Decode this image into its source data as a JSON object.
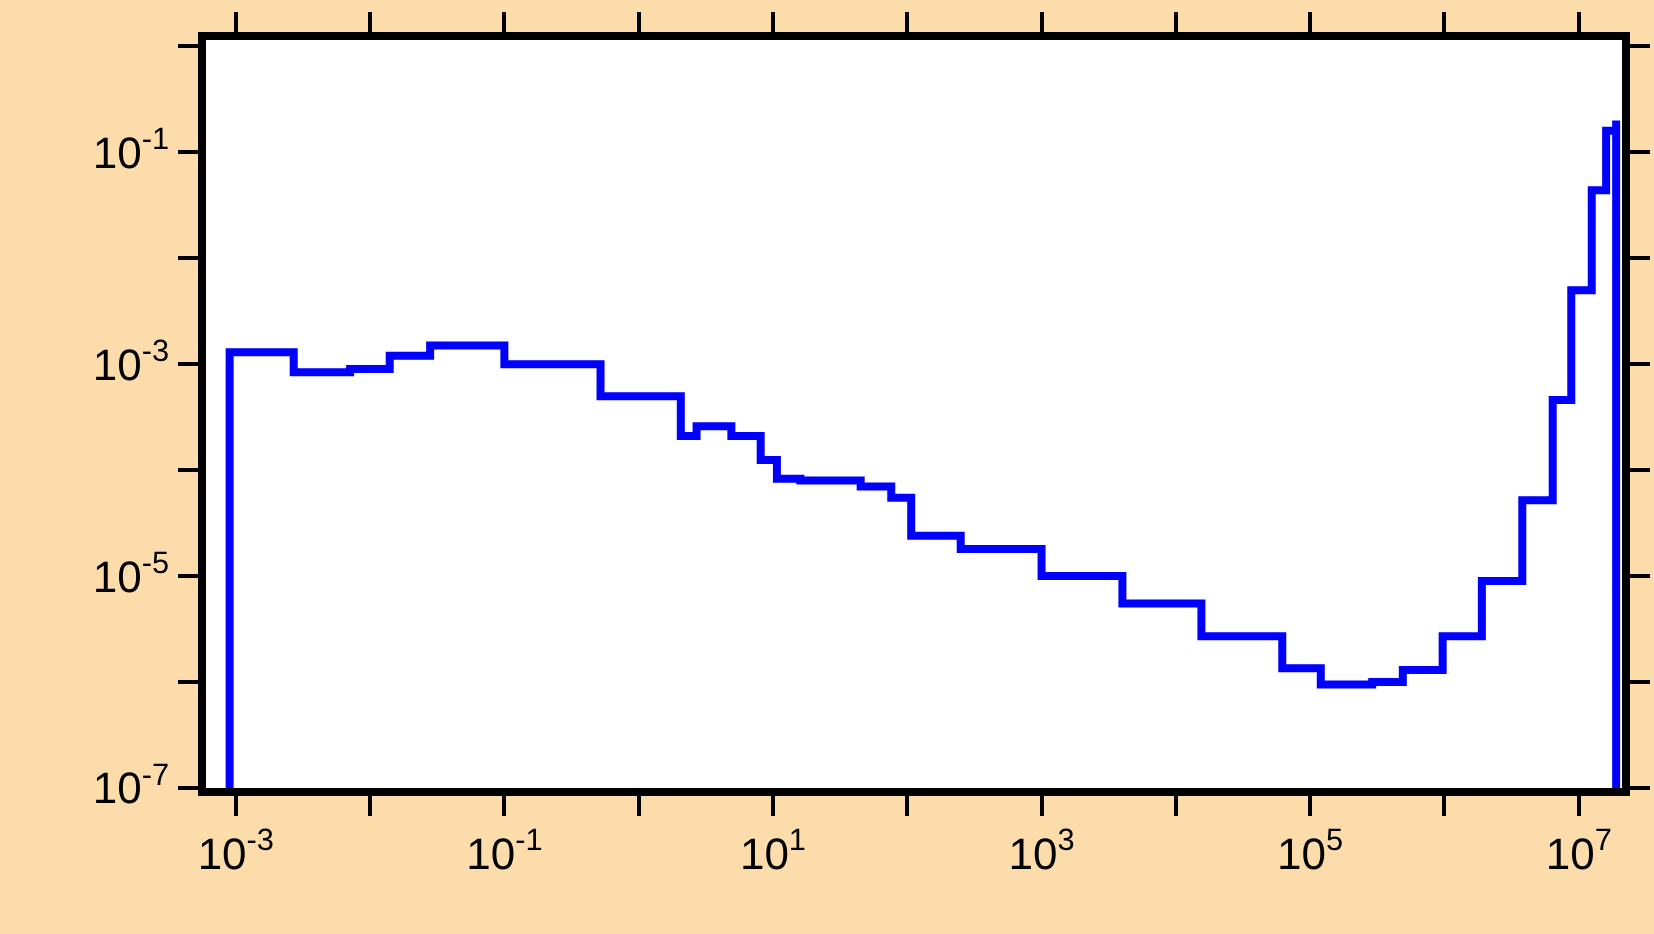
{
  "chart_data": {
    "type": "step",
    "log": "xy",
    "grid": false,
    "color": "#0000ff",
    "x": [
      0.0009,
      0.0009,
      0.0027,
      0.0071,
      0.014,
      0.028,
      0.036,
      0.1,
      0.52,
      2.06,
      2.7,
      4.9,
      8.1,
      10.7,
      16,
      45,
      76,
      107,
      250,
      1000,
      4000,
      15500,
      62000,
      120000,
      290000,
      490000,
      970000,
      1900000,
      3800000,
      6400000,
      8800000,
      12500000,
      16000000,
      19000000,
      19000000
    ],
    "values": [
      1e-07,
      0.0013,
      0.00084,
      0.0009,
      0.0012,
      0.0015,
      0.0015,
      0.001,
      0.0005,
      0.00021,
      0.00026,
      0.00021,
      0.000125,
      8.3e-05,
      8e-05,
      7e-05,
      5.5e-05,
      2.4e-05,
      1.8e-05,
      1e-05,
      5.5e-06,
      2.7e-06,
      1.35e-06,
      9.5e-07,
      1e-06,
      1.3e-06,
      2.7e-06,
      9e-06,
      5.2e-05,
      0.00046,
      0.005,
      0.044,
      0.16,
      0.2,
      1e-07
    ],
    "xlim": [
      0.0006,
      21000000
    ],
    "ylim": [
      1e-07,
      1.15
    ],
    "xticks": [
      {
        "value": 0.001,
        "label": "10$^{-3}$"
      },
      {
        "value": 0.01,
        "label": null
      },
      {
        "value": 0.1,
        "label": "10$^{-1}$"
      },
      {
        "value": 1,
        "label": null
      },
      {
        "value": 10,
        "label": "10$^{1}$"
      },
      {
        "value": 100,
        "label": null
      },
      {
        "value": 1000,
        "label": "10$^{3}$"
      },
      {
        "value": 10000,
        "label": null
      },
      {
        "value": 100000,
        "label": "10$^{5}$"
      },
      {
        "value": 1000000,
        "label": null
      },
      {
        "value": 10000000,
        "label": "10$^{7}$"
      }
    ],
    "yticks": [
      {
        "value": 1e-07,
        "label": "10$^{-7}$"
      },
      {
        "value": 1e-06,
        "label": null
      },
      {
        "value": 1e-05,
        "label": "10$^{-5}$"
      },
      {
        "value": 0.0001,
        "label": null
      },
      {
        "value": 0.001,
        "label": "10$^{-3}$"
      },
      {
        "value": 0.01,
        "label": null
      },
      {
        "value": 0.1,
        "label": "10$^{-1}$"
      },
      {
        "value": 1,
        "label": null
      }
    ]
  }
}
